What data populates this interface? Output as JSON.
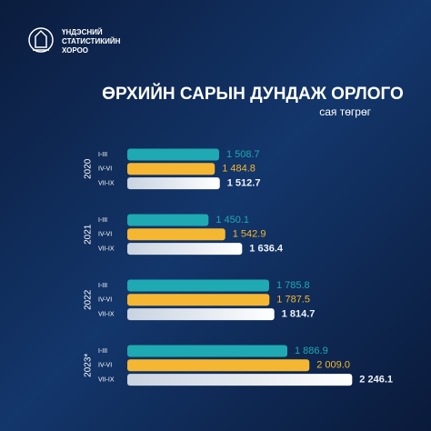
{
  "header": {
    "org_lines": [
      "ҮНДЭСНИЙ",
      "СТАТИСТИКИЙН",
      "ХОРОО"
    ]
  },
  "chart_data": {
    "type": "bar",
    "orientation": "horizontal",
    "title": "ӨРХИЙН САРЫН ДУНДАЖ ОРЛОГО",
    "subtitle": "сая төгрөг",
    "categories": [
      "2020",
      "2021",
      "2022",
      "2023*"
    ],
    "xlim": [
      1000,
      2300
    ],
    "series": [
      {
        "name": "I-III",
        "color": "#1fa9b2",
        "values": [
          1508.7,
          1450.1,
          1785.8,
          1886.9
        ],
        "value_labels": [
          "1 508.7",
          "1 450.1",
          "1 785.8",
          "1 886.9"
        ]
      },
      {
        "name": "IV-VI",
        "color": "#f5b731",
        "values": [
          1484.8,
          1542.9,
          1787.5,
          2009.0
        ],
        "value_labels": [
          "1 484.8",
          "1 542.9",
          "1 787.5",
          "2 009.0"
        ]
      },
      {
        "name": "VII-IX",
        "color": "#eef2f7",
        "values": [
          1512.7,
          1636.4,
          1814.7,
          2246.1
        ],
        "value_labels": [
          "1 512.7",
          "1 636.4",
          "1 814.7",
          "2 246.1"
        ]
      }
    ]
  }
}
